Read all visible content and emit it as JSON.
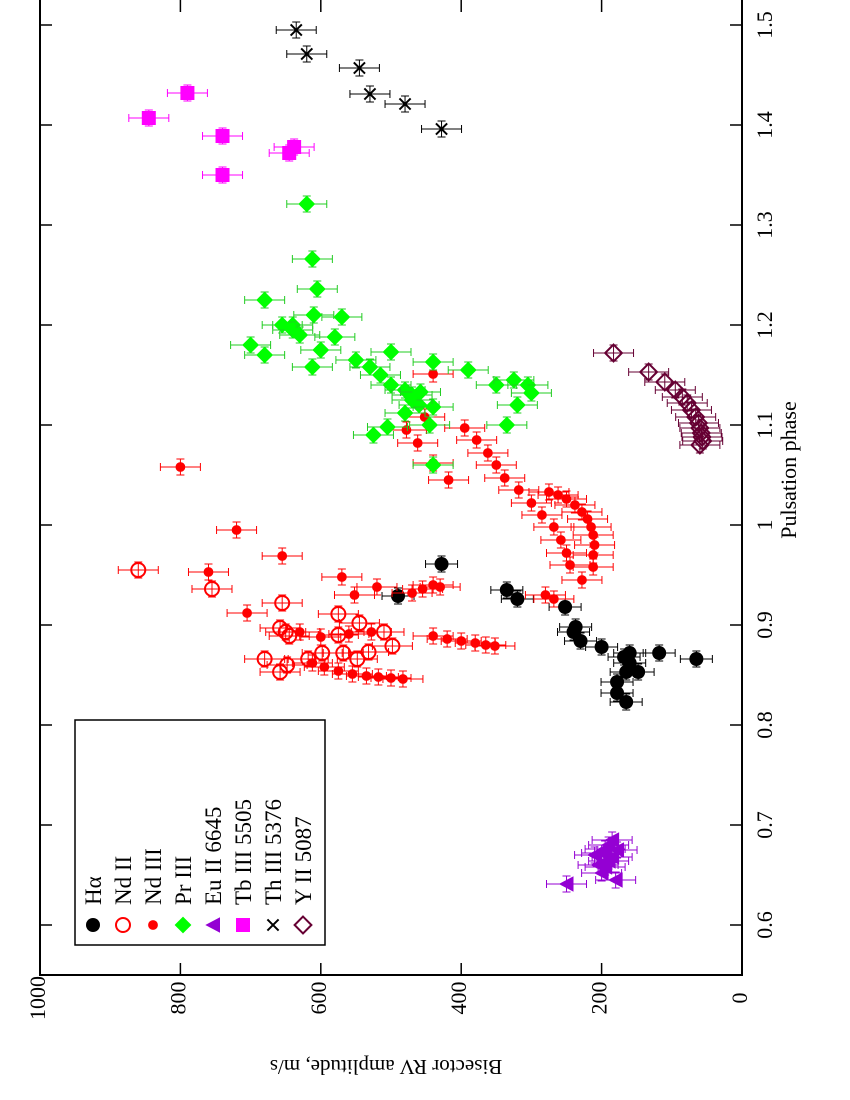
{
  "chart_data": {
    "type": "scatter",
    "orientation": "rotated 90 degrees clockwise",
    "xlabel": "Pulsation phase",
    "ylabel": "Bisector RV amplitude, m/s",
    "xlim": [
      0.55,
      1.52
    ],
    "ylim": [
      0,
      1000
    ],
    "x_ticks": [
      "0.6",
      "0.7",
      "0.8",
      "0.9",
      "1",
      "1.1",
      "1.2",
      "1.3",
      "1.4",
      "1.5"
    ],
    "y_ticks": [
      "0",
      "200",
      "400",
      "600",
      "800",
      "1000"
    ],
    "legend_position": "bottom-left",
    "series": [
      {
        "name": "Hα",
        "marker": "filled-circle",
        "color": "#000000",
        "points": [
          [
            0.823,
            165
          ],
          [
            0.832,
            178
          ],
          [
            0.843,
            178
          ],
          [
            0.853,
            165
          ],
          [
            0.853,
            148
          ],
          [
            0.862,
            160
          ],
          [
            0.868,
            168
          ],
          [
            0.872,
            160
          ],
          [
            0.866,
            65
          ],
          [
            0.872,
            118
          ],
          [
            0.878,
            200
          ],
          [
            0.884,
            230
          ],
          [
            0.893,
            240
          ],
          [
            0.898,
            237
          ],
          [
            0.918,
            252
          ],
          [
            0.926,
            320
          ],
          [
            0.935,
            335
          ],
          [
            0.961,
            428
          ],
          [
            0.929,
            490
          ]
        ]
      },
      {
        "name": "Nd II",
        "marker": "open-circle",
        "color": "#ff0000",
        "points": [
          [
            0.955,
            860
          ],
          [
            0.936,
            755
          ],
          [
            0.922,
            655
          ],
          [
            0.911,
            575
          ],
          [
            0.902,
            545
          ],
          [
            0.893,
            510
          ],
          [
            0.879,
            498
          ],
          [
            0.873,
            532
          ],
          [
            0.866,
            548
          ],
          [
            0.872,
            568
          ],
          [
            0.872,
            598
          ],
          [
            0.866,
            618
          ],
          [
            0.86,
            648
          ],
          [
            0.853,
            658
          ],
          [
            0.866,
            680
          ],
          [
            0.889,
            645
          ],
          [
            0.897,
            658
          ],
          [
            0.893,
            650
          ],
          [
            0.89,
            575
          ]
        ]
      },
      {
        "name": "Nd III",
        "marker": "small-filled-circle",
        "color": "#ff0000",
        "points": [
          [
            1.058,
            800
          ],
          [
            0.995,
            720
          ],
          [
            0.969,
            655
          ],
          [
            0.953,
            760
          ],
          [
            0.912,
            705
          ],
          [
            0.948,
            570
          ],
          [
            0.93,
            552
          ],
          [
            0.938,
            520
          ],
          [
            0.938,
            430
          ],
          [
            0.932,
            470
          ],
          [
            0.936,
            455
          ],
          [
            0.94,
            440
          ],
          [
            0.893,
            630
          ],
          [
            0.888,
            600
          ],
          [
            0.891,
            560
          ],
          [
            0.893,
            528
          ],
          [
            0.862,
            612
          ],
          [
            0.858,
            595
          ],
          [
            0.854,
            575
          ],
          [
            0.851,
            555
          ],
          [
            0.849,
            535
          ],
          [
            0.848,
            518
          ],
          [
            0.847,
            500
          ],
          [
            0.846,
            483
          ],
          [
            0.889,
            440
          ],
          [
            0.886,
            420
          ],
          [
            0.884,
            400
          ],
          [
            0.882,
            380
          ],
          [
            0.88,
            365
          ],
          [
            0.879,
            352
          ],
          [
            0.93,
            280
          ],
          [
            0.926,
            268
          ],
          [
            0.945,
            228
          ],
          [
            0.958,
            212
          ],
          [
            0.97,
            212
          ],
          [
            0.98,
            210
          ],
          [
            0.99,
            212
          ],
          [
            0.998,
            215
          ],
          [
            1.006,
            220
          ],
          [
            1.013,
            228
          ],
          [
            1.02,
            238
          ],
          [
            1.026,
            250
          ],
          [
            1.03,
            262
          ],
          [
            1.033,
            275
          ],
          [
            0.96,
            245
          ],
          [
            0.972,
            250
          ],
          [
            0.985,
            258
          ],
          [
            0.998,
            268
          ],
          [
            1.01,
            285
          ],
          [
            1.022,
            300
          ],
          [
            1.035,
            318
          ],
          [
            1.047,
            338
          ],
          [
            1.06,
            350
          ],
          [
            1.072,
            362
          ],
          [
            1.085,
            378
          ],
          [
            1.097,
            395
          ],
          [
            1.045,
            418
          ],
          [
            1.062,
            440
          ],
          [
            1.082,
            462
          ],
          [
            1.095,
            478
          ],
          [
            1.108,
            452
          ],
          [
            1.151,
            440
          ]
        ]
      },
      {
        "name": "Pr III",
        "marker": "filled-diamond",
        "color": "#00ff00",
        "points": [
          [
            1.321,
            620
          ],
          [
            1.266,
            612
          ],
          [
            1.236,
            605
          ],
          [
            1.225,
            680
          ],
          [
            1.21,
            610
          ],
          [
            1.2,
            640
          ],
          [
            1.2,
            655
          ],
          [
            1.195,
            640
          ],
          [
            1.19,
            630
          ],
          [
            1.18,
            700
          ],
          [
            1.17,
            680
          ],
          [
            1.158,
            612
          ],
          [
            1.165,
            550
          ],
          [
            1.158,
            530
          ],
          [
            1.15,
            515
          ],
          [
            1.14,
            500
          ],
          [
            1.135,
            480
          ],
          [
            1.13,
            470
          ],
          [
            1.12,
            460
          ],
          [
            1.118,
            440
          ],
          [
            1.1,
            445
          ],
          [
            1.09,
            525
          ],
          [
            1.098,
            505
          ],
          [
            1.112,
            480
          ],
          [
            1.125,
            470
          ],
          [
            1.133,
            458
          ],
          [
            1.14,
            350
          ],
          [
            1.145,
            325
          ],
          [
            1.14,
            305
          ],
          [
            1.132,
            300
          ],
          [
            1.12,
            320
          ],
          [
            1.1,
            335
          ],
          [
            1.155,
            390
          ],
          [
            1.163,
            440
          ],
          [
            1.173,
            500
          ],
          [
            1.208,
            570
          ],
          [
            1.188,
            580
          ],
          [
            1.175,
            600
          ],
          [
            1.06,
            440
          ]
        ]
      },
      {
        "name": "Eu II  6645",
        "marker": "filled-triangle",
        "color": "#9400d3",
        "points": [
          [
            0.641,
            250
          ],
          [
            0.645,
            180
          ],
          [
            0.652,
            200
          ],
          [
            0.658,
            195
          ],
          [
            0.664,
            190
          ],
          [
            0.668,
            185
          ],
          [
            0.672,
            200
          ],
          [
            0.676,
            195
          ],
          [
            0.68,
            190
          ],
          [
            0.685,
            185
          ],
          [
            0.66,
            205
          ],
          [
            0.67,
            210
          ],
          [
            0.675,
            178
          ]
        ]
      },
      {
        "name": "Tb III 5505",
        "marker": "filled-square",
        "color": "#ff00ff",
        "points": [
          [
            1.432,
            790
          ],
          [
            1.407,
            845
          ],
          [
            1.389,
            740
          ],
          [
            1.35,
            740
          ],
          [
            1.378,
            638
          ],
          [
            1.372,
            645
          ]
        ]
      },
      {
        "name": "Th III 5376",
        "marker": "cross",
        "color": "#000000",
        "points": [
          [
            1.495,
            635
          ],
          [
            1.471,
            620
          ],
          [
            1.457,
            545
          ],
          [
            1.431,
            530
          ],
          [
            1.421,
            480
          ],
          [
            1.396,
            428
          ]
        ]
      },
      {
        "name": "Y  II 5087",
        "marker": "open-diamond",
        "color": "#660033",
        "points": [
          [
            1.172,
            183
          ],
          [
            1.153,
            133
          ],
          [
            1.143,
            110
          ],
          [
            1.135,
            95
          ],
          [
            1.128,
            85
          ],
          [
            1.122,
            78
          ],
          [
            1.115,
            72
          ],
          [
            1.108,
            66
          ],
          [
            1.102,
            62
          ],
          [
            1.097,
            60
          ],
          [
            1.092,
            58
          ],
          [
            1.088,
            57
          ],
          [
            1.084,
            56
          ],
          [
            1.08,
            60
          ]
        ]
      }
    ]
  }
}
